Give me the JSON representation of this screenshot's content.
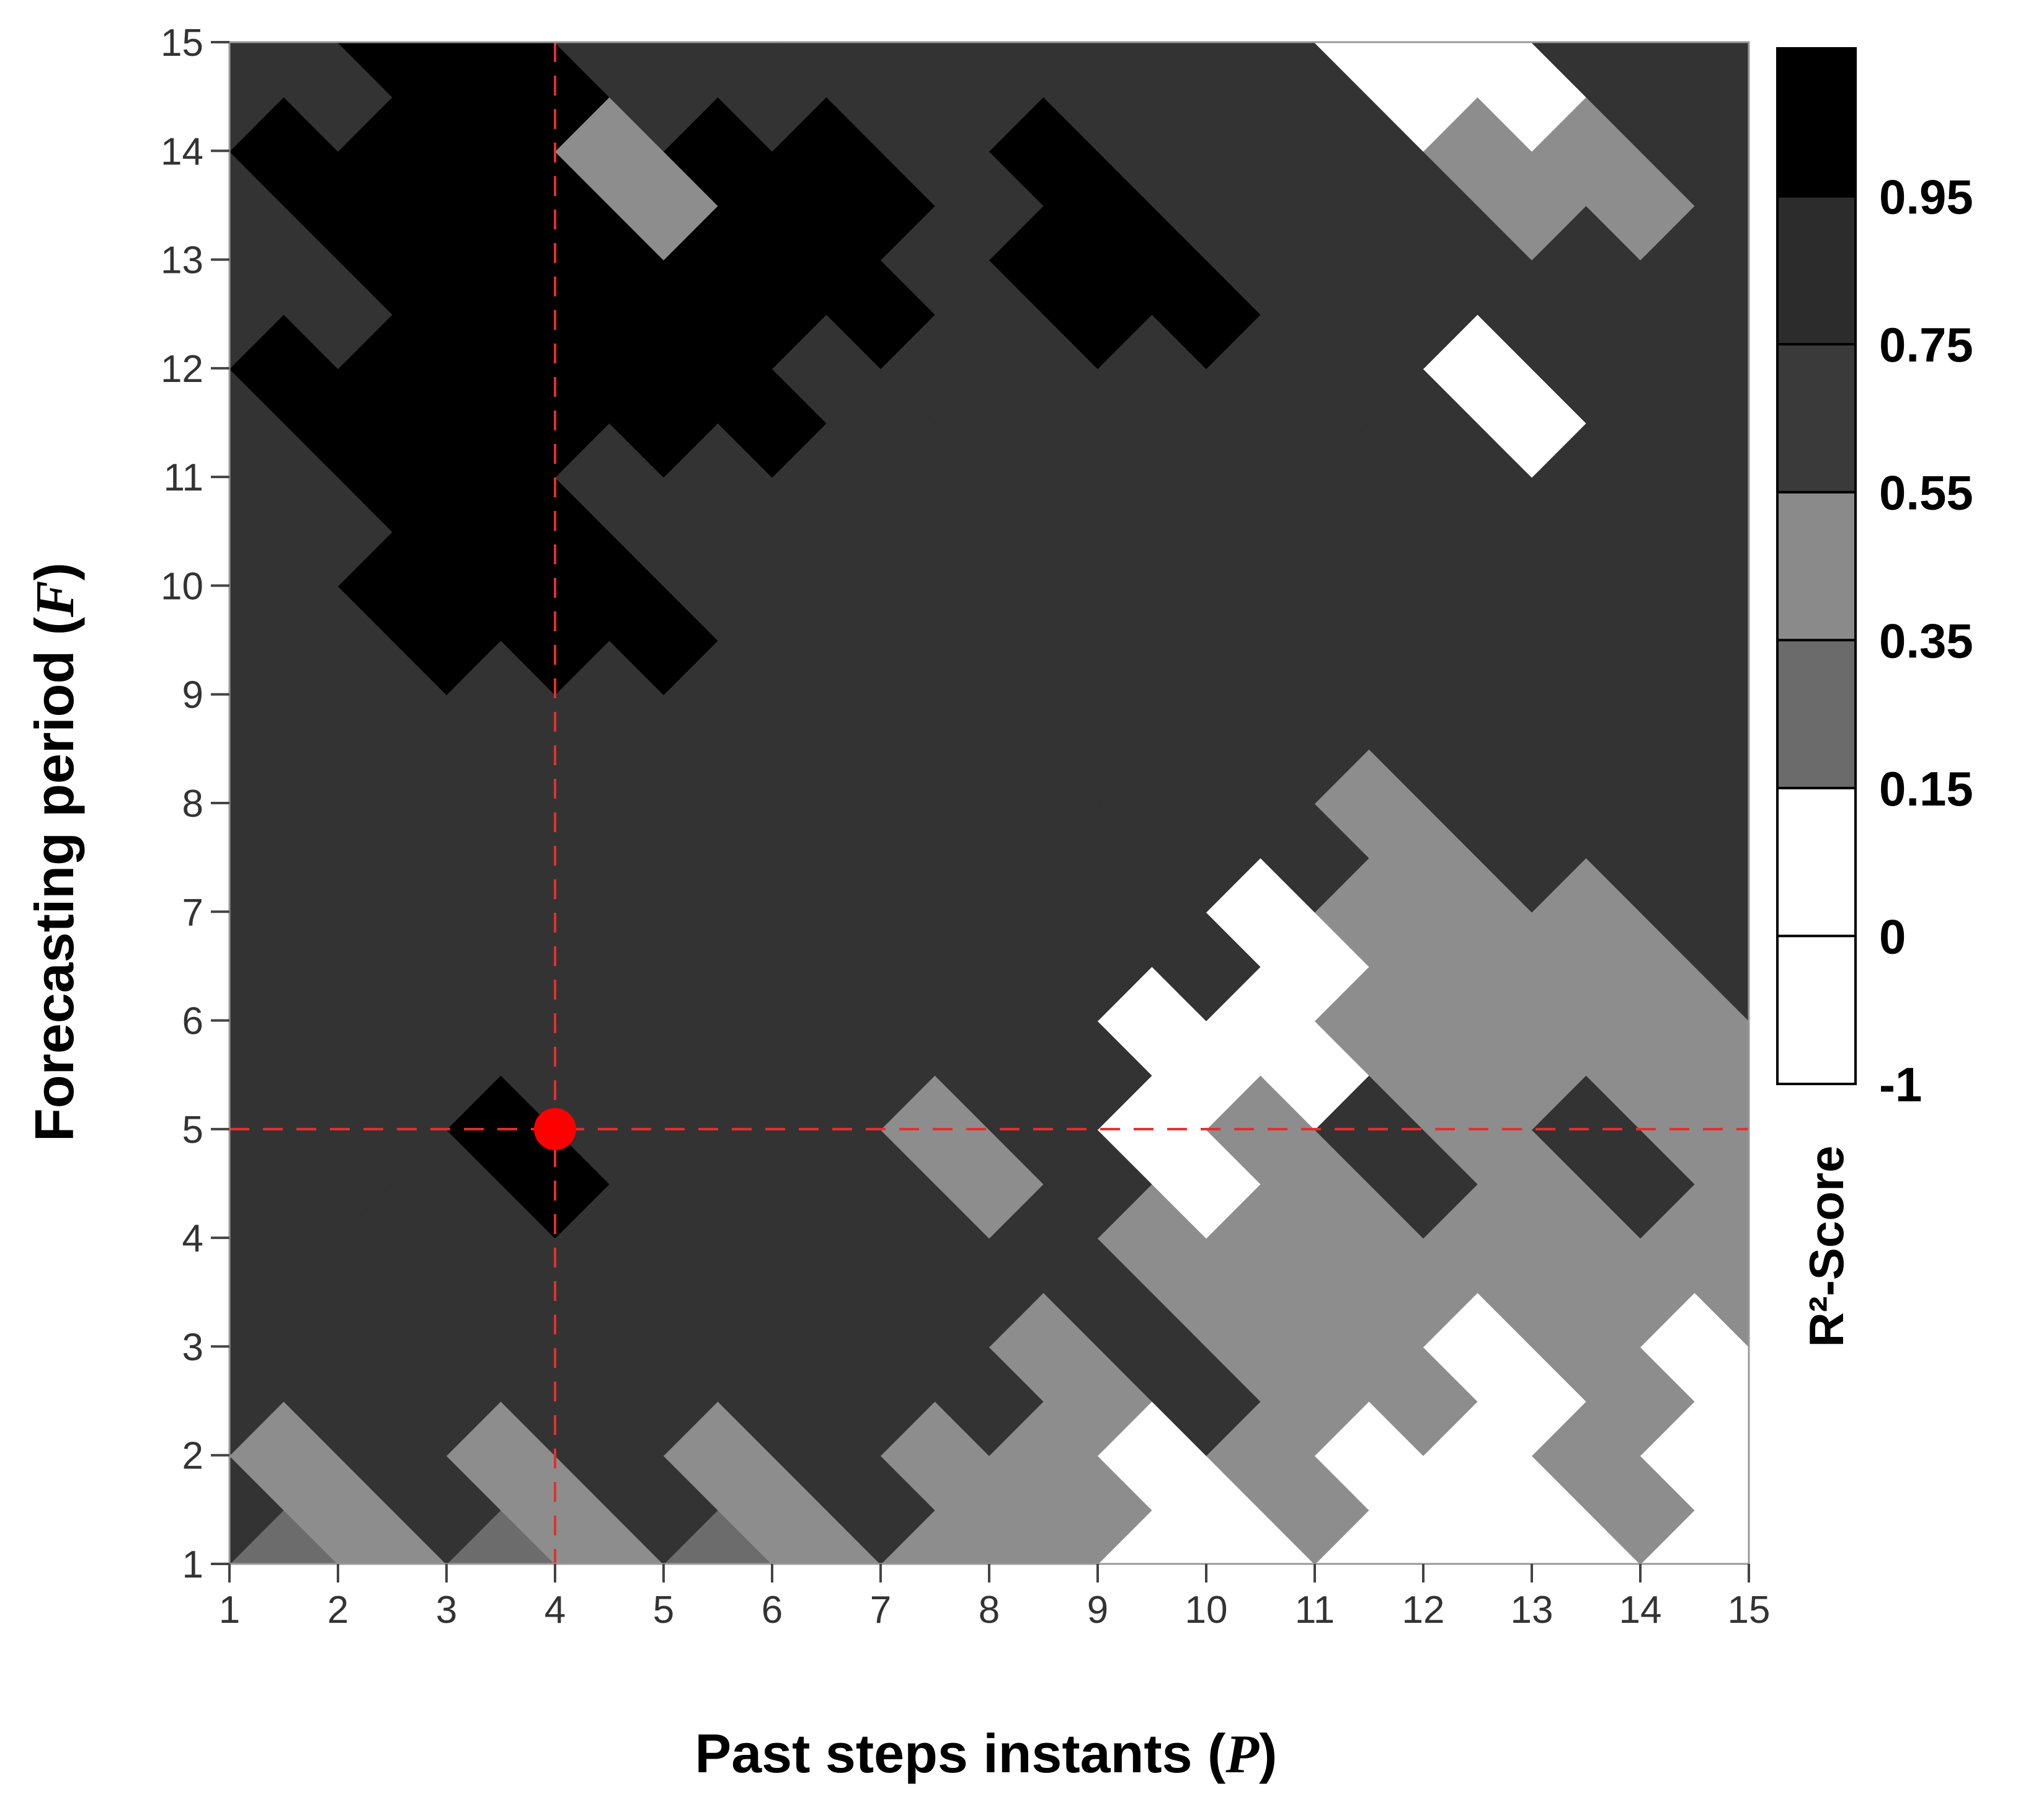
{
  "chart_data": {
    "type": "heatmap",
    "style": "filled-contour",
    "xlabel": "Past steps instants (P)",
    "ylabel": "Forecasting period (F)",
    "xlabel_parts": [
      "Past steps instants (",
      "P",
      ")"
    ],
    "ylabel_parts": [
      "Forecasting period (",
      "F",
      ")"
    ],
    "x": [
      1,
      2,
      3,
      4,
      5,
      6,
      7,
      8,
      9,
      10,
      11,
      12,
      13,
      14,
      15
    ],
    "y": [
      1,
      2,
      3,
      4,
      5,
      6,
      7,
      8,
      9,
      10,
      11,
      12,
      13,
      14,
      15
    ],
    "xlim": [
      1,
      15
    ],
    "ylim": [
      1,
      15
    ],
    "colorbar": {
      "title": "R²-Score",
      "levels": [
        -1,
        0,
        0.15,
        0.35,
        0.55,
        0.75,
        0.95
      ],
      "level_labels": [
        "-1",
        "0",
        "0.15",
        "0.35",
        "0.55",
        "0.75",
        "0.95"
      ],
      "band_colors": [
        "#ffffff",
        "#ffffff",
        "#6b6b6b",
        "#8a8a8a",
        "#3a3a3a",
        "#2c2c2c",
        "#000000"
      ]
    },
    "band_legend": [
      {
        "code": 0,
        "range": "< 0.15",
        "color": "#ffffff"
      },
      {
        "code": 1,
        "range": "0.15 – 0.35",
        "color": "#6c6c6c"
      },
      {
        "code": 2,
        "range": "0.35 – 0.55",
        "color": "#8d8d8d"
      },
      {
        "code": 3,
        "range": "0.55 – 0.75",
        "color": "#4d4d4d"
      },
      {
        "code": 4,
        "range": "0.75 – 0.95",
        "color": "#333333"
      },
      {
        "code": 5,
        "range": "> 0.95",
        "color": "#000000"
      }
    ],
    "band_code_grid_rows_F_from_1_to_15": [
      [
        2,
        1,
        2,
        1,
        2,
        1,
        2,
        2,
        2,
        0,
        0,
        0,
        0,
        0,
        0
      ],
      [
        4,
        2,
        4,
        2,
        4,
        2,
        4,
        2,
        2,
        0,
        2,
        0,
        0,
        2,
        0
      ],
      [
        4,
        4,
        4,
        4,
        4,
        4,
        4,
        4,
        2,
        4,
        2,
        2,
        0,
        2,
        0
      ],
      [
        4,
        4,
        4,
        4,
        4,
        4,
        4,
        4,
        4,
        2,
        2,
        2,
        2,
        2,
        2
      ],
      [
        4,
        4,
        4,
        5,
        4,
        4,
        4,
        2,
        4,
        0,
        2,
        4,
        2,
        4,
        2
      ],
      [
        4,
        4,
        4,
        4,
        4,
        4,
        4,
        4,
        4,
        0,
        0,
        2,
        2,
        2,
        2
      ],
      [
        4,
        4,
        4,
        4,
        4,
        4,
        4,
        4,
        4,
        4,
        0,
        2,
        2,
        2,
        4
      ],
      [
        4,
        4,
        4,
        4,
        4,
        4,
        4,
        4,
        4,
        4,
        4,
        2,
        4,
        4,
        4
      ],
      [
        4,
        4,
        4,
        4,
        4,
        4,
        4,
        4,
        4,
        4,
        4,
        4,
        4,
        4,
        4
      ],
      [
        4,
        4,
        5,
        5,
        5,
        4,
        4,
        4,
        4,
        4,
        4,
        4,
        4,
        4,
        4
      ],
      [
        4,
        4,
        5,
        5,
        4,
        4,
        4,
        4,
        4,
        4,
        4,
        4,
        4,
        4,
        4
      ],
      [
        4,
        5,
        5,
        5,
        5,
        5,
        4,
        4,
        4,
        4,
        4,
        4,
        0,
        4,
        4
      ],
      [
        4,
        4,
        5,
        5,
        5,
        5,
        5,
        4,
        5,
        5,
        4,
        4,
        4,
        4,
        4
      ],
      [
        4,
        5,
        5,
        5,
        2,
        5,
        5,
        4,
        5,
        4,
        4,
        4,
        2,
        2,
        4
      ],
      [
        4,
        4,
        5,
        5,
        4,
        4,
        4,
        4,
        4,
        4,
        4,
        0,
        0,
        4,
        4
      ]
    ],
    "highlight_point": {
      "x": 4,
      "y": 5,
      "color": "#ff0000"
    },
    "reference_lines": {
      "x": 4,
      "y": 5,
      "color": "#e03030",
      "style": "dashed"
    },
    "grid": false,
    "legend": "colorbar-right"
  }
}
